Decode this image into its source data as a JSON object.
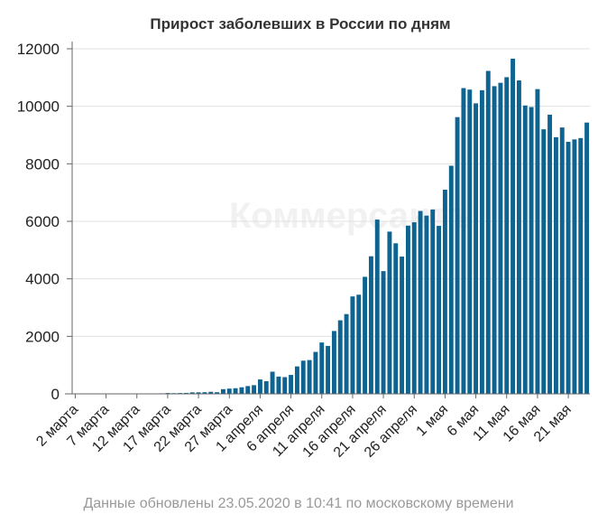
{
  "title": "Прирост заболевших в России по дням",
  "footer": "Данные обновлены 23.05.2020 в 10:41 по московскому времени",
  "watermark": "Коммерсантъ",
  "colors": {
    "bar": "#0e6390",
    "grid": "#e0e0e0",
    "axis": "#666666",
    "text": "#222222",
    "title": "#333333",
    "footer": "#999999"
  },
  "chart_data": {
    "type": "bar",
    "title": "Прирост заболевших в России по дням",
    "xlabel": "",
    "ylabel": "",
    "ylim": [
      0,
      12000
    ],
    "yticks": [
      0,
      2000,
      4000,
      6000,
      8000,
      10000,
      12000
    ],
    "grid": true,
    "start_date": "2020-03-02",
    "x_tick_labels": [
      {
        "index": 0,
        "label": "2 марта"
      },
      {
        "index": 5,
        "label": "7 марта"
      },
      {
        "index": 10,
        "label": "12 марта"
      },
      {
        "index": 15,
        "label": "17 марта"
      },
      {
        "index": 20,
        "label": "22 марта"
      },
      {
        "index": 25,
        "label": "27 марта"
      },
      {
        "index": 30,
        "label": "1 апреля"
      },
      {
        "index": 35,
        "label": "6 апреля"
      },
      {
        "index": 40,
        "label": "11 апреля"
      },
      {
        "index": 45,
        "label": "16 апреля"
      },
      {
        "index": 50,
        "label": "21 апреля"
      },
      {
        "index": 55,
        "label": "26 апреля"
      },
      {
        "index": 60,
        "label": "1 мая"
      },
      {
        "index": 65,
        "label": "6 мая"
      },
      {
        "index": 70,
        "label": "11 мая"
      },
      {
        "index": 75,
        "label": "16 мая"
      },
      {
        "index": 80,
        "label": "21 мая"
      }
    ],
    "values": [
      1,
      0,
      0,
      1,
      3,
      0,
      7,
      2,
      0,
      8,
      7,
      6,
      15,
      11,
      18,
      30,
      24,
      29,
      33,
      52,
      53,
      57,
      71,
      57,
      163,
      182,
      196,
      228,
      270,
      302,
      501,
      440,
      771,
      601,
      582,
      658,
      954,
      1154,
      1175,
      1459,
      1786,
      1667,
      2186,
      2558,
      2774,
      3388,
      3448,
      4070,
      4785,
      6060,
      4268,
      5642,
      5236,
      4774,
      5849,
      5966,
      6361,
      6198,
      6411,
      5841,
      7099,
      7933,
      9623,
      10633,
      10581,
      10102,
      10559,
      11231,
      10699,
      10817,
      11012,
      11656,
      10899,
      10028,
      9974,
      10598,
      9200,
      9709,
      8926,
      9263,
      8764,
      8849,
      8894,
      9434
    ]
  }
}
